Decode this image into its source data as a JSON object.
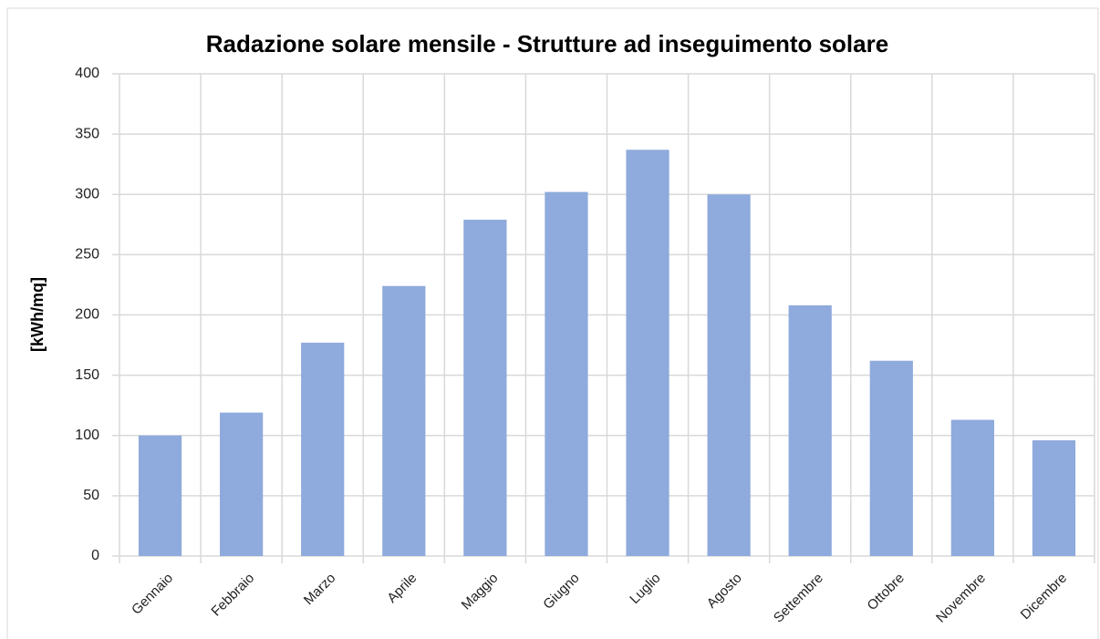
{
  "chart_data": {
    "type": "bar",
    "title": "Radazione solare mensile - Strutture ad inseguimento solare",
    "y_label": "[kWh/mq]",
    "categories": [
      "Gennaio",
      "Febbraio",
      "Marzo",
      "Aprile",
      "Maggio",
      "Giugno",
      "Luglio",
      "Agosto",
      "Settembre",
      "Ottobre",
      "Novembre",
      "Dicembre"
    ],
    "values": [
      100,
      119,
      177,
      224,
      279,
      302,
      337,
      300,
      208,
      162,
      113,
      96
    ],
    "color": "#8faadc",
    "ylim": [
      0,
      400
    ],
    "yticks": [
      0,
      50,
      100,
      150,
      200,
      250,
      300,
      350,
      400
    ],
    "grid": true
  }
}
